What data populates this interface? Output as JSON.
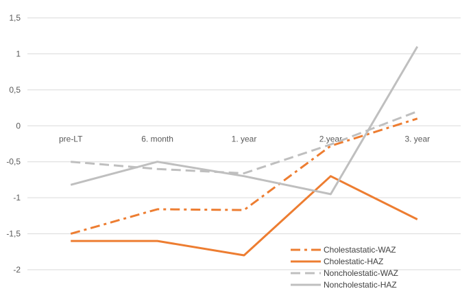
{
  "chart_data": {
    "type": "line",
    "categories": [
      "pre-LT",
      "6. month",
      "1. year",
      "2.year",
      "3.  year"
    ],
    "series": [
      {
        "name": "Cholestastatic-WAZ",
        "values": [
          -1.5,
          -1.16,
          -1.17,
          -0.28,
          0.1
        ],
        "color": "#ED7D31",
        "dash": "dash-dot"
      },
      {
        "name": "Cholestatic-HAZ",
        "values": [
          -1.6,
          -1.6,
          -1.8,
          -0.7,
          -1.3
        ],
        "color": "#ED7D31",
        "dash": "solid"
      },
      {
        "name": "Noncholestatic-WAZ",
        "values": [
          -0.5,
          -0.6,
          -0.66,
          -0.26,
          0.2
        ],
        "color": "#BFBFBF",
        "dash": "dash"
      },
      {
        "name": "Noncholestatic-HAZ",
        "values": [
          -0.82,
          -0.5,
          -0.7,
          -0.95,
          1.1
        ],
        "color": "#BFBFBF",
        "dash": "solid"
      }
    ],
    "y_ticks": [
      "1,5",
      "1",
      "0,5",
      "0",
      "-0,5",
      "-1",
      "-1,5",
      "-2"
    ],
    "ylim": [
      -2,
      1.5
    ],
    "grid": true,
    "legend_position": "bottom-right"
  }
}
